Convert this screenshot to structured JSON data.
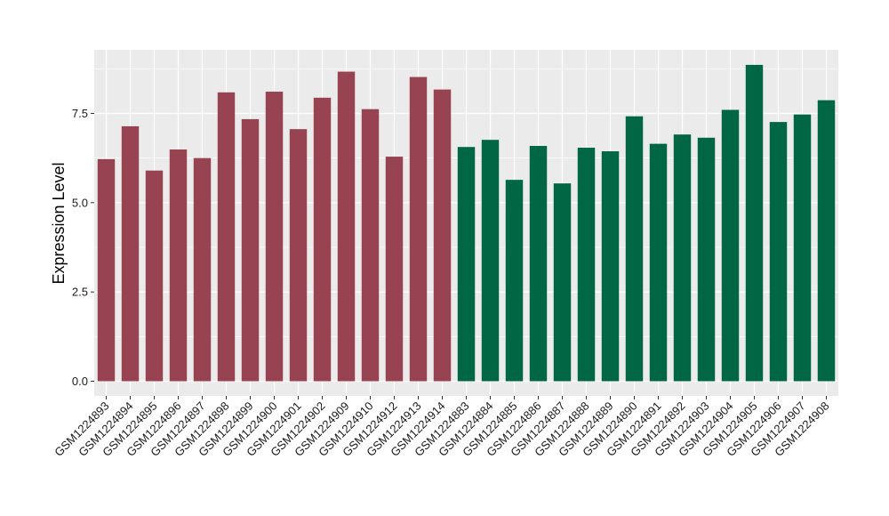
{
  "chart_data": {
    "type": "bar",
    "title": "",
    "xlabel": "",
    "ylabel": "Expression Level",
    "ylim": [
      0,
      9.0
    ],
    "y_ticks": [
      0.0,
      2.5,
      5.0,
      7.5
    ],
    "y_tick_labels": [
      "0.0",
      "2.5",
      "5.0",
      "7.5"
    ],
    "grid": true,
    "legend": "none",
    "panel_background": "#ebebeb",
    "grid_color": "#ffffff",
    "categories": [
      "GSM1224893",
      "GSM1224894",
      "GSM1224895",
      "GSM1224896",
      "GSM1224897",
      "GSM1224898",
      "GSM1224899",
      "GSM1224900",
      "GSM1224901",
      "GSM1224902",
      "GSM1224909",
      "GSM1224910",
      "GSM1224912",
      "GSM1224913",
      "GSM1224914",
      "GSM1224883",
      "GSM1224884",
      "GSM1224885",
      "GSM1224886",
      "GSM1224887",
      "GSM1224888",
      "GSM1224889",
      "GSM1224890",
      "GSM1224891",
      "GSM1224892",
      "GSM1224903",
      "GSM1224904",
      "GSM1224905",
      "GSM1224906",
      "GSM1224907",
      "GSM1224908"
    ],
    "values": [
      6.22,
      7.14,
      5.9,
      6.49,
      6.25,
      8.09,
      7.34,
      8.11,
      7.06,
      7.94,
      8.67,
      7.62,
      6.29,
      8.52,
      8.17,
      6.56,
      6.76,
      5.64,
      6.59,
      5.54,
      6.54,
      6.44,
      7.42,
      6.65,
      6.91,
      6.82,
      7.6,
      8.86,
      7.26,
      7.47,
      7.87
    ],
    "group_colors": [
      "#974352",
      "#974352",
      "#974352",
      "#974352",
      "#974352",
      "#974352",
      "#974352",
      "#974352",
      "#974352",
      "#974352",
      "#974352",
      "#974352",
      "#974352",
      "#974352",
      "#974352",
      "#006644",
      "#006644",
      "#006644",
      "#006644",
      "#006644",
      "#006644",
      "#006644",
      "#006644",
      "#006644",
      "#006644",
      "#006644",
      "#006644",
      "#006644",
      "#006644",
      "#006644",
      "#006644"
    ]
  }
}
